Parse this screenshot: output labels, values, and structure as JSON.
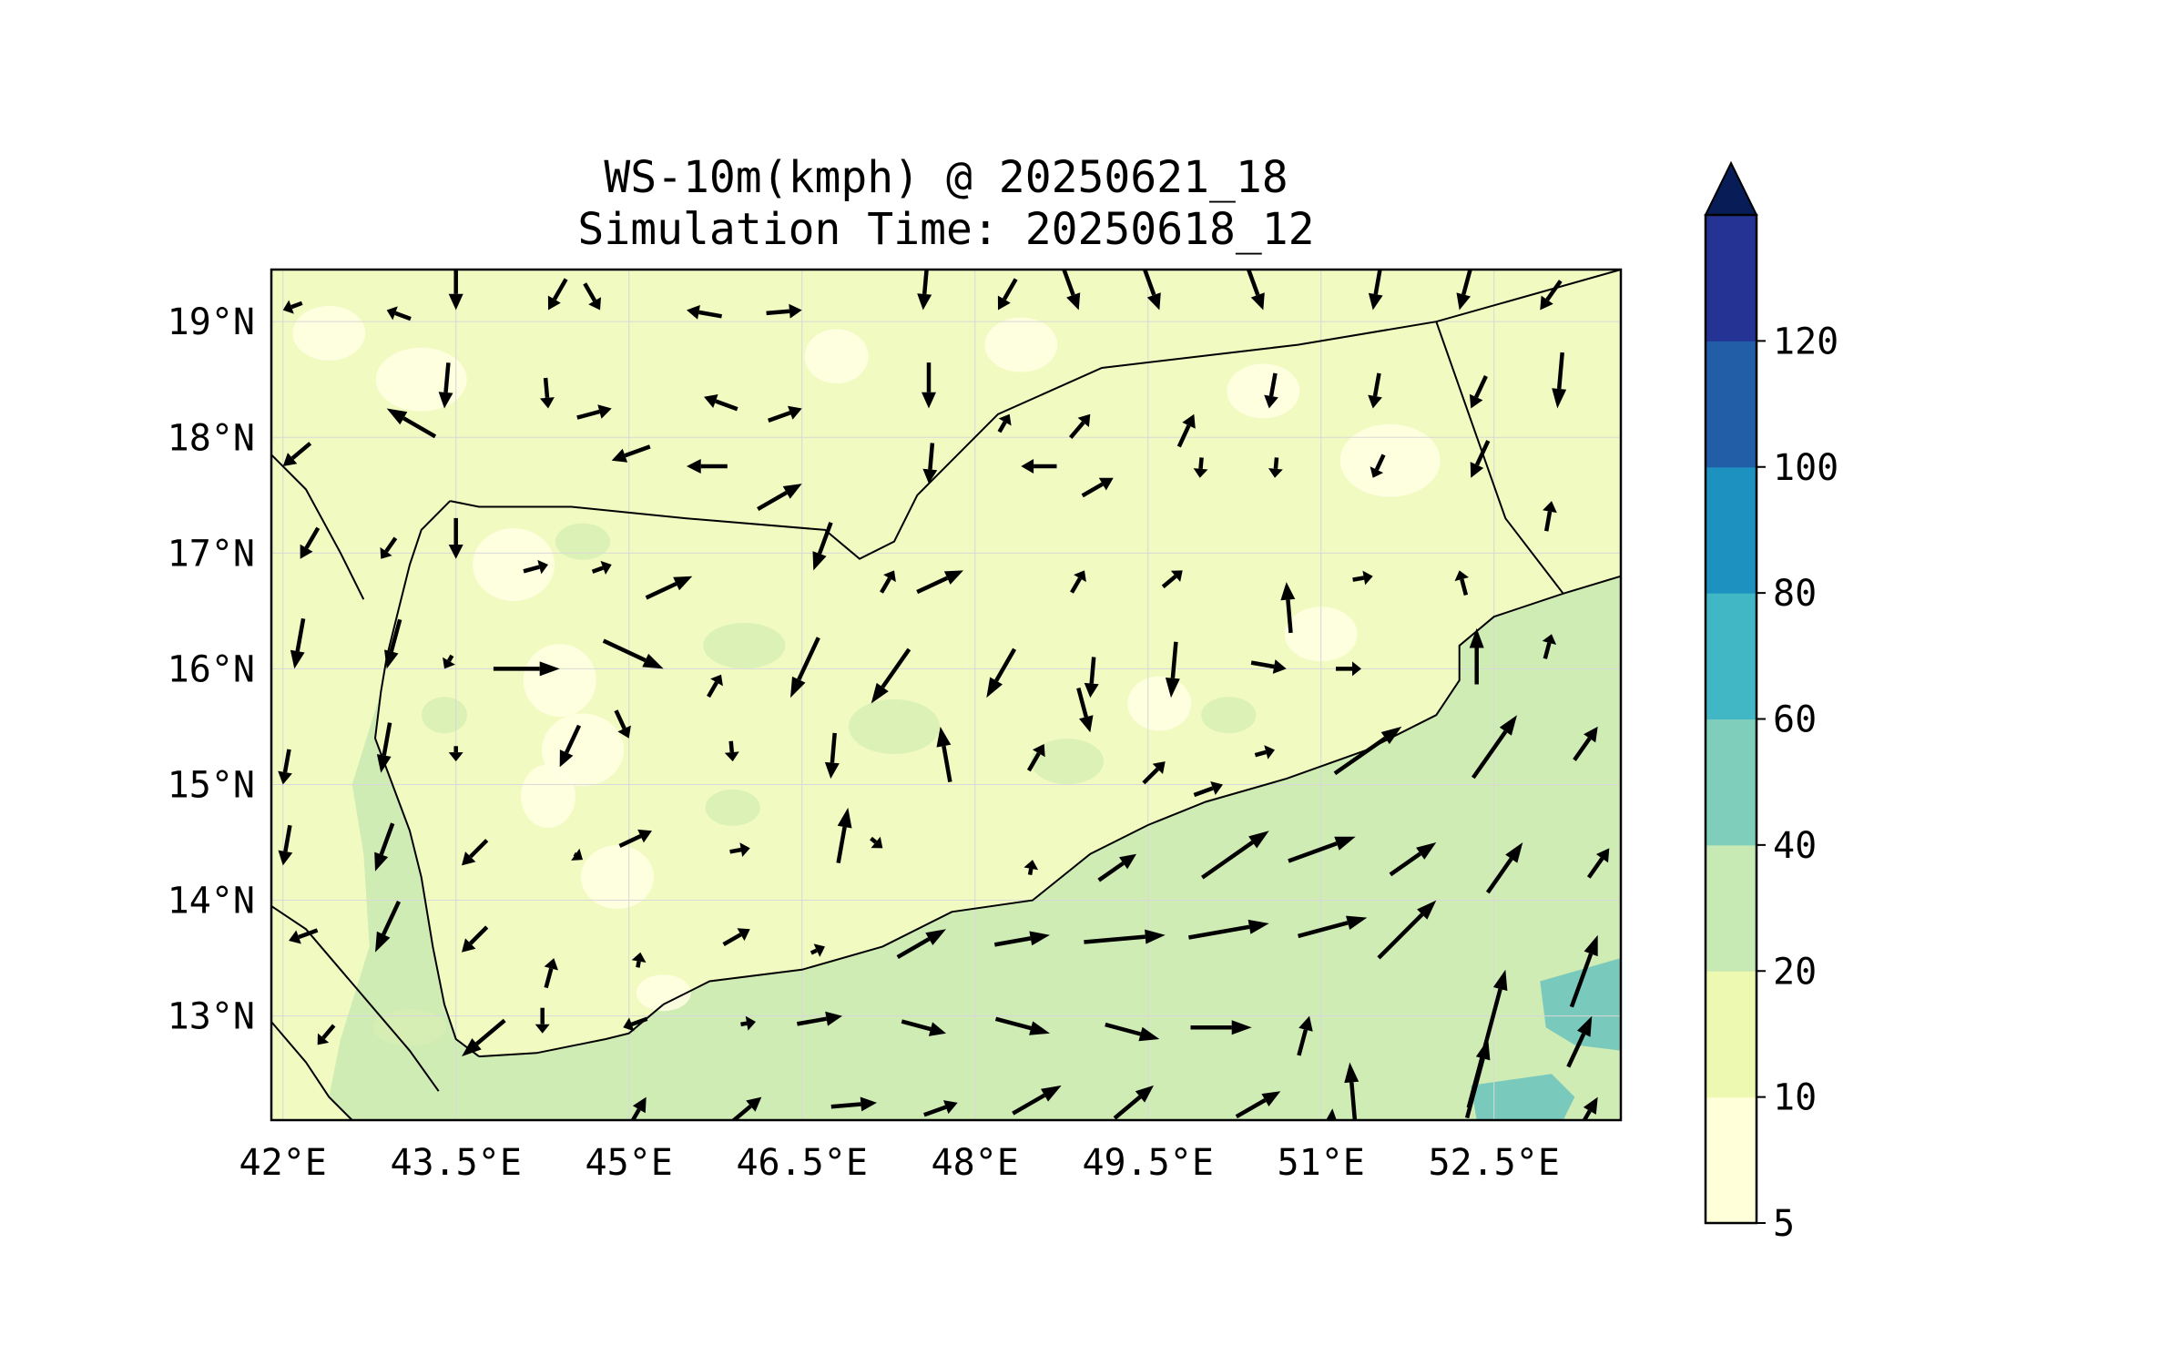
{
  "title": {
    "line1": "WS-10m(kmph) @ 20250621_18",
    "line2": "Simulation Time: 20250618_12"
  },
  "map": {
    "lon_range": [
      41.9,
      53.6
    ],
    "lat_range": [
      12.1,
      19.45
    ],
    "lon_ticks": [
      {
        "value": 42,
        "label": "42°E"
      },
      {
        "value": 43.5,
        "label": "43.5°E"
      },
      {
        "value": 45,
        "label": "45°E"
      },
      {
        "value": 46.5,
        "label": "46.5°E"
      },
      {
        "value": 48,
        "label": "48°E"
      },
      {
        "value": 49.5,
        "label": "49.5°E"
      },
      {
        "value": 51,
        "label": "51°E"
      },
      {
        "value": 52.5,
        "label": "52.5°E"
      }
    ],
    "lat_ticks": [
      {
        "value": 19,
        "label": "19°N"
      },
      {
        "value": 18,
        "label": "18°N"
      },
      {
        "value": 17,
        "label": "17°N"
      },
      {
        "value": 16,
        "label": "16°N"
      },
      {
        "value": 15,
        "label": "15°N"
      },
      {
        "value": 14,
        "label": "14°N"
      },
      {
        "value": 13,
        "label": "13°N"
      }
    ],
    "gridlines": true,
    "field_colors": {
      "land_base": "#f1fac0",
      "light_patch": "#ffffe0",
      "sea_base": "#d0ecb5",
      "sea_high": "#79c9bc"
    },
    "boundaries": [
      {
        "name": "Yemen-Saudi border",
        "points": [
          [
            43.45,
            17.45
          ],
          [
            43.7,
            17.4
          ],
          [
            44.5,
            17.4
          ],
          [
            45.5,
            17.3
          ],
          [
            46.7,
            17.2
          ],
          [
            47.0,
            16.95
          ],
          [
            47.3,
            17.1
          ],
          [
            47.5,
            17.5
          ],
          [
            48.2,
            18.2
          ],
          [
            49.1,
            18.6
          ],
          [
            50.8,
            18.8
          ],
          [
            52.0,
            19.0
          ],
          [
            53.6,
            19.45
          ]
        ]
      },
      {
        "name": "Yemen-Oman border",
        "points": [
          [
            52.0,
            19.0
          ],
          [
            52.6,
            17.3
          ],
          [
            53.1,
            16.65
          ]
        ]
      }
    ],
    "coastlines": [
      {
        "name": "Red Sea coast Yemen",
        "points": [
          [
            43.45,
            17.45
          ],
          [
            43.2,
            17.2
          ],
          [
            43.1,
            16.9
          ],
          [
            43.0,
            16.5
          ],
          [
            42.9,
            16.1
          ],
          [
            42.85,
            15.8
          ],
          [
            42.8,
            15.4
          ],
          [
            42.95,
            15.0
          ],
          [
            43.1,
            14.6
          ],
          [
            43.2,
            14.2
          ],
          [
            43.3,
            13.6
          ],
          [
            43.4,
            13.1
          ],
          [
            43.5,
            12.8
          ],
          [
            43.7,
            12.65
          ]
        ]
      },
      {
        "name": "Gulf of Aden coast Yemen",
        "points": [
          [
            43.7,
            12.65
          ],
          [
            44.2,
            12.68
          ],
          [
            44.8,
            12.8
          ],
          [
            45.0,
            12.85
          ],
          [
            45.3,
            13.1
          ],
          [
            45.7,
            13.3
          ],
          [
            46.5,
            13.4
          ],
          [
            47.2,
            13.6
          ],
          [
            47.8,
            13.9
          ],
          [
            48.5,
            14.0
          ],
          [
            49.0,
            14.4
          ],
          [
            49.5,
            14.65
          ],
          [
            50.0,
            14.85
          ],
          [
            50.7,
            15.05
          ],
          [
            51.4,
            15.3
          ],
          [
            52.0,
            15.6
          ],
          [
            52.2,
            15.9
          ],
          [
            52.2,
            16.2
          ],
          [
            52.5,
            16.45
          ],
          [
            53.1,
            16.65
          ],
          [
            53.6,
            16.8
          ]
        ]
      },
      {
        "name": "Saudi Red Sea coast",
        "points": [
          [
            41.9,
            17.85
          ],
          [
            42.2,
            17.55
          ],
          [
            42.5,
            17.0
          ],
          [
            42.7,
            16.6
          ]
        ]
      },
      {
        "name": "Eritrea coast",
        "points": [
          [
            41.9,
            13.95
          ],
          [
            42.2,
            13.75
          ],
          [
            42.5,
            13.4
          ],
          [
            42.8,
            13.05
          ],
          [
            43.1,
            12.7
          ],
          [
            43.35,
            12.35
          ]
        ]
      },
      {
        "name": "Djibouti coast",
        "points": [
          [
            41.9,
            12.95
          ],
          [
            42.2,
            12.6
          ],
          [
            42.4,
            12.3
          ],
          [
            42.6,
            12.1
          ]
        ]
      }
    ],
    "wind_arrows": [
      [
        42.0,
        19.1,
        200,
        4
      ],
      [
        42.9,
        19.1,
        160,
        5
      ],
      [
        43.5,
        19.1,
        270,
        9
      ],
      [
        44.3,
        19.1,
        240,
        7
      ],
      [
        44.75,
        19.1,
        300,
        6
      ],
      [
        45.5,
        19.1,
        170,
        7
      ],
      [
        46.5,
        19.1,
        5,
        7
      ],
      [
        47.55,
        19.1,
        265,
        9
      ],
      [
        48.2,
        19.1,
        240,
        7
      ],
      [
        48.9,
        19.1,
        290,
        9
      ],
      [
        49.6,
        19.1,
        290,
        9
      ],
      [
        50.5,
        19.1,
        290,
        9
      ],
      [
        51.45,
        19.1,
        260,
        9
      ],
      [
        52.2,
        19.1,
        255,
        9
      ],
      [
        52.9,
        19.1,
        235,
        7
      ],
      [
        42.9,
        18.25,
        150,
        11
      ],
      [
        43.4,
        18.25,
        265,
        9
      ],
      [
        44.3,
        18.25,
        275,
        6
      ],
      [
        44.85,
        18.25,
        15,
        7
      ],
      [
        45.65,
        18.35,
        160,
        7
      ],
      [
        46.5,
        18.25,
        20,
        7
      ],
      [
        47.6,
        18.25,
        270,
        9
      ],
      [
        48.3,
        18.2,
        60,
        4
      ],
      [
        49.0,
        18.2,
        50,
        6
      ],
      [
        49.9,
        18.2,
        65,
        7
      ],
      [
        50.55,
        18.25,
        260,
        7
      ],
      [
        51.45,
        18.25,
        260,
        7
      ],
      [
        52.3,
        18.25,
        245,
        7
      ],
      [
        53.05,
        18.25,
        265,
        11
      ],
      [
        42.0,
        17.75,
        220,
        7
      ],
      [
        44.85,
        17.8,
        200,
        8
      ],
      [
        45.5,
        17.75,
        180,
        8
      ],
      [
        46.5,
        17.6,
        30,
        10
      ],
      [
        47.6,
        17.6,
        265,
        8
      ],
      [
        48.4,
        17.75,
        180,
        7
      ],
      [
        49.2,
        17.65,
        30,
        7
      ],
      [
        49.95,
        17.65,
        265,
        4
      ],
      [
        50.6,
        17.65,
        265,
        4
      ],
      [
        51.45,
        17.65,
        245,
        5
      ],
      [
        52.3,
        17.65,
        245,
        8
      ],
      [
        53.0,
        17.45,
        80,
        6
      ],
      [
        42.15,
        16.95,
        240,
        7
      ],
      [
        42.85,
        16.95,
        235,
        5
      ],
      [
        43.5,
        16.95,
        270,
        8
      ],
      [
        44.3,
        16.9,
        15,
        5
      ],
      [
        44.85,
        16.9,
        20,
        4
      ],
      [
        45.55,
        16.8,
        25,
        10
      ],
      [
        46.6,
        16.85,
        250,
        10
      ],
      [
        47.3,
        16.85,
        60,
        5
      ],
      [
        47.9,
        16.85,
        25,
        10
      ],
      [
        48.95,
        16.85,
        60,
        5
      ],
      [
        49.8,
        16.85,
        40,
        5
      ],
      [
        50.7,
        16.75,
        95,
        10
      ],
      [
        51.45,
        16.8,
        10,
        4
      ],
      [
        52.2,
        16.85,
        105,
        5
      ],
      [
        42.1,
        16.0,
        260,
        10
      ],
      [
        42.9,
        16.0,
        255,
        10
      ],
      [
        43.4,
        16.0,
        240,
        3
      ],
      [
        44.4,
        16.0,
        0,
        13
      ],
      [
        45.3,
        16.0,
        335,
        13
      ],
      [
        45.8,
        15.95,
        60,
        5
      ],
      [
        46.4,
        15.75,
        245,
        13
      ],
      [
        47.1,
        15.7,
        235,
        13
      ],
      [
        47.7,
        15.5,
        100,
        11
      ],
      [
        48.1,
        15.75,
        240,
        11
      ],
      [
        48.6,
        15.35,
        60,
        6
      ],
      [
        49.0,
        15.75,
        265,
        8
      ],
      [
        49.0,
        15.45,
        285,
        9
      ],
      [
        49.7,
        15.75,
        265,
        11
      ],
      [
        50.7,
        16.0,
        350,
        7
      ],
      [
        51.35,
        16.0,
        0,
        5
      ],
      [
        52.35,
        16.35,
        90,
        11
      ],
      [
        53.0,
        16.3,
        75,
        5
      ],
      [
        42.0,
        15.0,
        260,
        7
      ],
      [
        42.85,
        15.1,
        260,
        10
      ],
      [
        43.5,
        15.2,
        270,
        3
      ],
      [
        44.4,
        15.15,
        245,
        9
      ],
      [
        45.0,
        15.4,
        295,
        6
      ],
      [
        45.9,
        15.2,
        275,
        4
      ],
      [
        46.75,
        15.05,
        265,
        9
      ],
      [
        46.9,
        14.8,
        80,
        11
      ],
      [
        49.65,
        15.2,
        45,
        6
      ],
      [
        50.15,
        15.0,
        20,
        6
      ],
      [
        50.6,
        15.3,
        15,
        4
      ],
      [
        51.7,
        15.5,
        35,
        16
      ],
      [
        52.7,
        15.6,
        55,
        15
      ],
      [
        53.4,
        15.5,
        55,
        8
      ],
      [
        42.0,
        14.3,
        260,
        8
      ],
      [
        42.8,
        14.25,
        250,
        10
      ],
      [
        43.55,
        14.3,
        225,
        7
      ],
      [
        44.6,
        14.35,
        325,
        2
      ],
      [
        45.2,
        14.6,
        25,
        7
      ],
      [
        46.05,
        14.45,
        10,
        4
      ],
      [
        47.2,
        14.45,
        320,
        3
      ],
      [
        48.5,
        14.35,
        80,
        3
      ],
      [
        49.4,
        14.4,
        35,
        9
      ],
      [
        50.55,
        14.6,
        35,
        16
      ],
      [
        51.3,
        14.55,
        20,
        14
      ],
      [
        52.0,
        14.5,
        35,
        11
      ],
      [
        52.75,
        14.5,
        55,
        12
      ],
      [
        53.5,
        14.45,
        55,
        7
      ],
      [
        42.05,
        13.65,
        200,
        6
      ],
      [
        42.8,
        13.55,
        245,
        11
      ],
      [
        43.55,
        13.55,
        225,
        7
      ],
      [
        44.35,
        13.5,
        75,
        6
      ],
      [
        45.1,
        13.55,
        80,
        3
      ],
      [
        46.05,
        13.75,
        30,
        6
      ],
      [
        46.7,
        13.6,
        25,
        3
      ],
      [
        47.75,
        13.75,
        30,
        11
      ],
      [
        48.65,
        13.7,
        10,
        11
      ],
      [
        49.65,
        13.7,
        5,
        16
      ],
      [
        50.55,
        13.8,
        10,
        16
      ],
      [
        51.4,
        13.85,
        15,
        14
      ],
      [
        52.0,
        14.0,
        45,
        16
      ],
      [
        52.6,
        13.4,
        75,
        28
      ],
      [
        53.4,
        13.7,
        70,
        15
      ],
      [
        42.3,
        12.75,
        230,
        5
      ],
      [
        44.25,
        12.85,
        270,
        5
      ],
      [
        44.95,
        12.9,
        200,
        5
      ],
      [
        46.1,
        12.95,
        10,
        3
      ],
      [
        46.85,
        13.0,
        10,
        9
      ],
      [
        47.75,
        12.85,
        345,
        9
      ],
      [
        48.65,
        12.85,
        345,
        11
      ],
      [
        49.6,
        12.8,
        345,
        11
      ],
      [
        50.4,
        12.9,
        0,
        12
      ],
      [
        50.9,
        13.0,
        75,
        8
      ],
      [
        51.25,
        12.6,
        95,
        16
      ],
      [
        52.45,
        12.8,
        75,
        16
      ],
      [
        53.35,
        13.0,
        65,
        11
      ],
      [
        43.55,
        12.65,
        220,
        11
      ],
      [
        45.15,
        12.3,
        60,
        8
      ],
      [
        46.15,
        12.3,
        40,
        8
      ],
      [
        47.15,
        12.25,
        5,
        9
      ],
      [
        47.85,
        12.25,
        20,
        7
      ],
      [
        48.75,
        12.4,
        30,
        11
      ],
      [
        49.55,
        12.4,
        40,
        10
      ],
      [
        50.65,
        12.35,
        30,
        10
      ],
      [
        51.1,
        12.2,
        85,
        9
      ],
      [
        53.4,
        12.3,
        60,
        9
      ]
    ]
  },
  "colorbar": {
    "levels": [
      "5",
      "10",
      "20",
      "40",
      "60",
      "80",
      "100",
      "120"
    ],
    "colors": [
      "#ffffd9",
      "#edf8b1",
      "#c7e9b4",
      "#7fcdbb",
      "#41b6c4",
      "#1d91c0",
      "#225ea8",
      "#253494"
    ],
    "extend_color": "#081d58",
    "extend": "max"
  }
}
